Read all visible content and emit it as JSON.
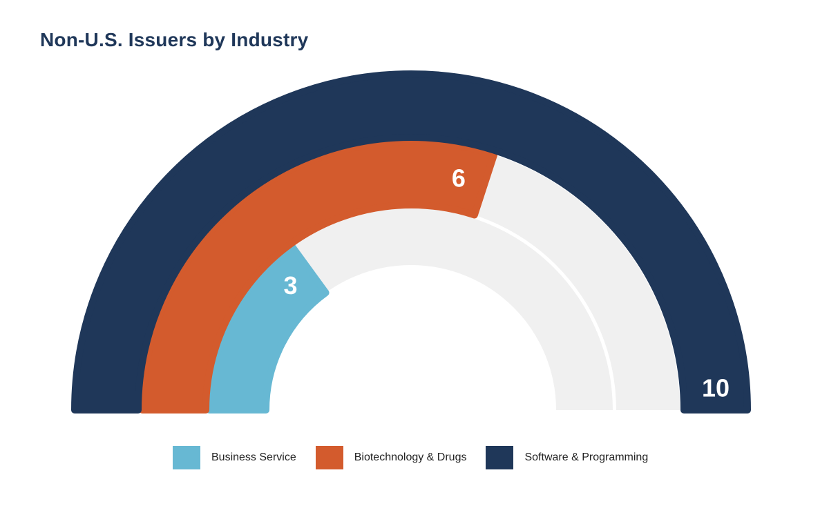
{
  "chart_data": {
    "type": "radial-bar",
    "title": "Non-U.S. Issuers by Industry",
    "max": 10,
    "series": [
      {
        "name": "Business Service",
        "value": 3,
        "label": "3",
        "color": "#67b8d3"
      },
      {
        "name": "Biotechnology & Drugs",
        "value": 6,
        "label": "6",
        "color": "#d35b2d"
      },
      {
        "name": "Software & Programming",
        "value": 10,
        "label": "10",
        "color": "#1f3759"
      }
    ],
    "track_color": "#f0f0f0",
    "legend_position": "bottom"
  }
}
